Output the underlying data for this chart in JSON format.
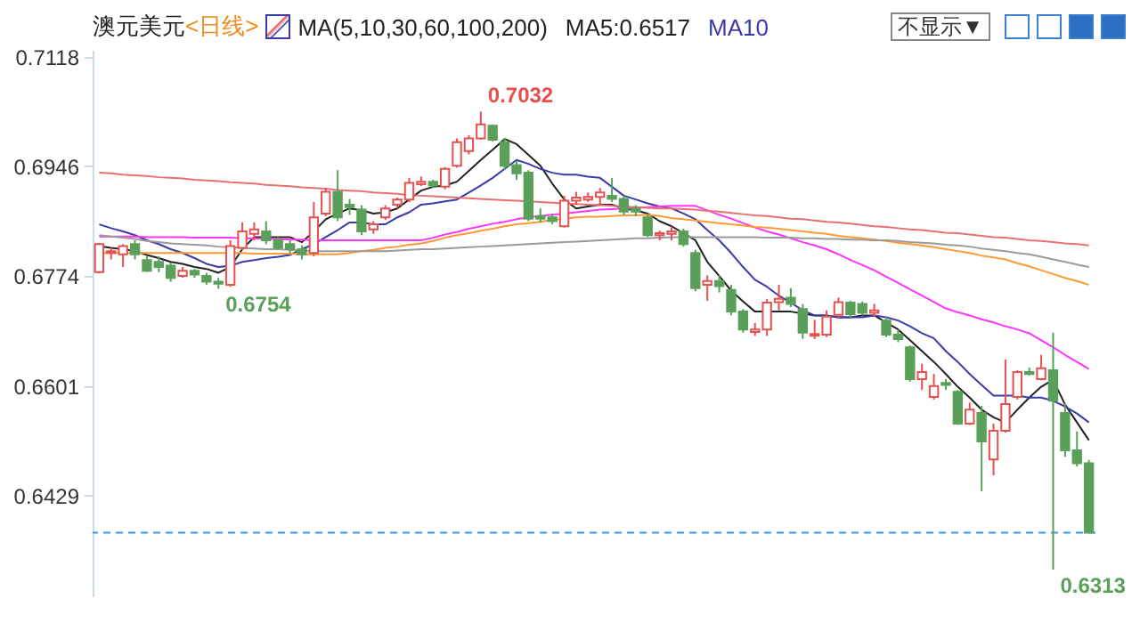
{
  "chart_data": {
    "type": "candlestick",
    "title": "澳元美元",
    "subtitle": "<日线>",
    "annotations": [
      "MA(5,10,30,60,100,200)",
      "MA5:0.6517",
      "MA10",
      "不显示▼",
      "0.7032",
      "0.6754",
      "0.6313"
    ],
    "categories": [
      null,
      null,
      null,
      null,
      null,
      null,
      null,
      null,
      null,
      null,
      null,
      null,
      null,
      null,
      null,
      null,
      null,
      null,
      null,
      null,
      null,
      null,
      null,
      null,
      null,
      null,
      null,
      null,
      null,
      null,
      null,
      null,
      null,
      null,
      null,
      null,
      null,
      null,
      null,
      null,
      null,
      null,
      null,
      null,
      null,
      null,
      null,
      null,
      null,
      null,
      null,
      null,
      null,
      null,
      null,
      null,
      null,
      null,
      null,
      null,
      null,
      null,
      null,
      null,
      null,
      null,
      null,
      null,
      null,
      null,
      null,
      null,
      null,
      null,
      null,
      null,
      null,
      null,
      null,
      null,
      null,
      null,
      null,
      null
    ],
    "ohlc": [
      [
        0.678,
        0.6826,
        0.6778,
        0.6824
      ],
      [
        0.681,
        0.6818,
        0.68,
        0.6813
      ],
      [
        0.6808,
        0.6824,
        0.6788,
        0.6821
      ],
      [
        0.6824,
        0.683,
        0.68,
        0.6808
      ],
      [
        0.6799,
        0.6805,
        0.678,
        0.6782
      ],
      [
        0.6796,
        0.6805,
        0.678,
        0.6788
      ],
      [
        0.679,
        0.6795,
        0.6765,
        0.6771
      ],
      [
        0.6774,
        0.6788,
        0.6771,
        0.6782
      ],
      [
        0.6782,
        0.6785,
        0.6771,
        0.6776
      ],
      [
        0.6774,
        0.6779,
        0.676,
        0.6765
      ],
      [
        0.6765,
        0.6771,
        0.6754,
        0.6762
      ],
      [
        0.676,
        0.683,
        0.6757,
        0.6821
      ],
      [
        0.6818,
        0.6858,
        0.6815,
        0.6844
      ],
      [
        0.684,
        0.6858,
        0.683,
        0.6847
      ],
      [
        0.6844,
        0.686,
        0.6824,
        0.683
      ],
      [
        0.683,
        0.6835,
        0.6815,
        0.6818
      ],
      [
        0.6824,
        0.683,
        0.681,
        0.6816
      ],
      [
        0.6816,
        0.6822,
        0.68,
        0.6808
      ],
      [
        0.681,
        0.689,
        0.6805,
        0.6866
      ],
      [
        0.6872,
        0.6912,
        0.6868,
        0.6906
      ],
      [
        0.6906,
        0.694,
        0.686,
        0.6866
      ],
      [
        0.6886,
        0.6895,
        0.687,
        0.6882
      ],
      [
        0.6878,
        0.6885,
        0.6838,
        0.6844
      ],
      [
        0.6847,
        0.686,
        0.684,
        0.6855
      ],
      [
        0.6866,
        0.6885,
        0.6862,
        0.688
      ],
      [
        0.6886,
        0.6897,
        0.688,
        0.6894
      ],
      [
        0.6894,
        0.6928,
        0.689,
        0.692
      ],
      [
        0.6918,
        0.693,
        0.6915,
        0.6922
      ],
      [
        0.6922,
        0.6925,
        0.6912,
        0.6916
      ],
      [
        0.6914,
        0.6945,
        0.691,
        0.6942
      ],
      [
        0.6947,
        0.699,
        0.6944,
        0.6984
      ],
      [
        0.697,
        0.6995,
        0.6965,
        0.699
      ],
      [
        0.699,
        0.7032,
        0.6988,
        0.7012
      ],
      [
        0.701,
        0.7012,
        0.6985,
        0.6988
      ],
      [
        0.6984,
        0.699,
        0.694,
        0.6947
      ],
      [
        0.6948,
        0.6955,
        0.6925,
        0.6935
      ],
      [
        0.6936,
        0.694,
        0.686,
        0.6864
      ],
      [
        0.6868,
        0.688,
        0.6858,
        0.6864
      ],
      [
        0.6866,
        0.6872,
        0.6855,
        0.686
      ],
      [
        0.6852,
        0.69,
        0.685,
        0.6892
      ],
      [
        0.6892,
        0.6906,
        0.6886,
        0.6897
      ],
      [
        0.6894,
        0.6905,
        0.689,
        0.6898
      ],
      [
        0.6898,
        0.6912,
        0.6885,
        0.6905
      ],
      [
        0.69,
        0.6928,
        0.689,
        0.6895
      ],
      [
        0.6895,
        0.69,
        0.687,
        0.6875
      ],
      [
        0.688,
        0.6885,
        0.6868,
        0.6875
      ],
      [
        0.6866,
        0.687,
        0.6835,
        0.6838
      ],
      [
        0.6838,
        0.6845,
        0.683,
        0.6841
      ],
      [
        0.684,
        0.6852,
        0.683,
        0.6844
      ],
      [
        0.6844,
        0.6848,
        0.682,
        0.6824
      ],
      [
        0.681,
        0.6815,
        0.675,
        0.6755
      ],
      [
        0.676,
        0.6775,
        0.6735,
        0.6766
      ],
      [
        0.6766,
        0.6775,
        0.6748,
        0.6758
      ],
      [
        0.6752,
        0.676,
        0.6712,
        0.6718
      ],
      [
        0.6718,
        0.6722,
        0.6685,
        0.669
      ],
      [
        0.6686,
        0.67,
        0.668,
        0.669
      ],
      [
        0.669,
        0.6738,
        0.668,
        0.6732
      ],
      [
        0.6733,
        0.676,
        0.672,
        0.6738
      ],
      [
        0.674,
        0.6755,
        0.6725,
        0.673
      ],
      [
        0.6722,
        0.673,
        0.6675,
        0.6685
      ],
      [
        0.668,
        0.6705,
        0.6675,
        0.6683
      ],
      [
        0.6682,
        0.672,
        0.6678,
        0.671
      ],
      [
        0.6713,
        0.674,
        0.6708,
        0.6733
      ],
      [
        0.6732,
        0.6735,
        0.6708,
        0.6714
      ],
      [
        0.673,
        0.6734,
        0.6712,
        0.6716
      ],
      [
        0.6716,
        0.673,
        0.671,
        0.672
      ],
      [
        0.6704,
        0.671,
        0.6678,
        0.6682
      ],
      [
        0.6682,
        0.669,
        0.667,
        0.6675
      ],
      [
        0.6662,
        0.6665,
        0.6608,
        0.6612
      ],
      [
        0.6612,
        0.6636,
        0.6595,
        0.6623
      ],
      [
        0.6584,
        0.662,
        0.658,
        0.6601
      ],
      [
        0.6606,
        0.6612,
        0.6595,
        0.6603
      ],
      [
        0.6592,
        0.6595,
        0.654,
        0.6542
      ],
      [
        0.6542,
        0.6575,
        0.654,
        0.6564
      ],
      [
        0.6559,
        0.657,
        0.6436,
        0.6514
      ],
      [
        0.6486,
        0.6542,
        0.6461,
        0.6531
      ],
      [
        0.6531,
        0.6643,
        0.6528,
        0.6573
      ],
      [
        0.6584,
        0.6626,
        0.658,
        0.6623
      ],
      [
        0.6623,
        0.663,
        0.6618,
        0.662
      ],
      [
        0.6612,
        0.665,
        0.661,
        0.6629
      ],
      [
        0.6626,
        0.6685,
        0.6313,
        0.6578
      ],
      [
        0.6559,
        0.6575,
        0.649,
        0.65
      ],
      [
        0.65,
        0.653,
        0.6475,
        0.648
      ],
      [
        0.648,
        0.6485,
        0.6371,
        0.6371
      ]
    ],
    "colors": [
      "#e84f4f",
      "#e84f4f",
      "#e84f4f",
      "#5aa05a",
      "#5aa05a",
      "#5aa05a",
      "#5aa05a",
      "#e84f4f",
      "#5aa05a",
      "#5aa05a",
      "#5aa05a",
      "#e84f4f",
      "#e84f4f",
      "#e84f4f",
      "#5aa05a",
      "#5aa05a",
      "#5aa05a",
      "#5aa05a",
      "#e84f4f",
      "#e84f4f",
      "#5aa05a",
      "#5aa05a",
      "#5aa05a",
      "#e84f4f",
      "#e84f4f",
      "#e84f4f",
      "#e84f4f",
      "#e84f4f",
      "#5aa05a",
      "#e84f4f",
      "#e84f4f",
      "#e84f4f",
      "#e84f4f",
      "#5aa05a",
      "#5aa05a",
      "#5aa05a",
      "#5aa05a",
      "#5aa05a",
      "#5aa05a",
      "#e84f4f",
      "#e84f4f",
      "#e84f4f",
      "#e84f4f",
      "#5aa05a",
      "#5aa05a",
      "#5aa05a",
      "#5aa05a",
      "#e84f4f",
      "#e84f4f",
      "#5aa05a",
      "#5aa05a",
      "#e84f4f",
      "#5aa05a",
      "#5aa05a",
      "#5aa05a",
      "#e84f4f",
      "#e84f4f",
      "#e84f4f",
      "#5aa05a",
      "#5aa05a",
      "#e84f4f",
      "#e84f4f",
      "#e84f4f",
      "#5aa05a",
      "#5aa05a",
      "#e84f4f",
      "#5aa05a",
      "#5aa05a",
      "#5aa05a",
      "#e84f4f",
      "#e84f4f",
      "#5aa05a",
      "#5aa05a",
      "#e84f4f",
      "#5aa05a",
      "#e84f4f",
      "#e84f4f",
      "#e84f4f",
      "#5aa05a",
      "#e84f4f",
      "#5aa05a",
      "#5aa05a",
      "#5aa05a",
      "#5aa05a"
    ],
    "series": [
      {
        "type": "line",
        "color": "#222222",
        "values": [
          0.6821,
          0.6818,
          0.6816,
          0.6813,
          0.6807,
          0.6802,
          0.6796,
          0.6793,
          0.6788,
          0.6785,
          0.6779,
          0.6788,
          0.6816,
          0.6835,
          0.6835,
          0.6835,
          0.6835,
          0.6827,
          0.6844,
          0.6863,
          0.6872,
          0.688,
          0.6877,
          0.6872,
          0.6874,
          0.688,
          0.6894,
          0.6908,
          0.6914,
          0.6916,
          0.6922,
          0.6939,
          0.6956,
          0.6972,
          0.6989,
          0.6981,
          0.6964,
          0.6947,
          0.6919,
          0.6894,
          0.688,
          0.6883,
          0.6886,
          0.6886,
          0.688,
          0.6877,
          0.6872,
          0.686,
          0.6852,
          0.6841,
          0.683,
          0.6796,
          0.6774,
          0.6751,
          0.6734,
          0.6718,
          0.6718,
          0.6718,
          0.6718,
          0.6715,
          0.6712,
          0.6712,
          0.6709,
          0.6709,
          0.6712,
          0.6712,
          0.6701,
          0.669,
          0.6673,
          0.6656,
          0.6639,
          0.662,
          0.66,
          0.6583,
          0.6564,
          0.6552,
          0.6544,
          0.6564,
          0.6583,
          0.66,
          0.6611,
          0.6572,
          0.6544,
          0.6516
        ]
      },
      {
        "type": "line",
        "color": "#3a3aa8",
        "values": [
          0.6855,
          0.6849,
          0.6844,
          0.6838,
          0.683,
          0.6824,
          0.6816,
          0.681,
          0.6802,
          0.6793,
          0.6788,
          0.679,
          0.6796,
          0.6799,
          0.6802,
          0.6804,
          0.6807,
          0.6816,
          0.6824,
          0.6835,
          0.6846,
          0.6858,
          0.6858,
          0.6855,
          0.6855,
          0.6866,
          0.6874,
          0.6886,
          0.6888,
          0.6891,
          0.6894,
          0.6905,
          0.6916,
          0.6928,
          0.6942,
          0.6956,
          0.695,
          0.6942,
          0.6936,
          0.6933,
          0.6933,
          0.693,
          0.6928,
          0.6914,
          0.69,
          0.6894,
          0.6888,
          0.6883,
          0.688,
          0.6872,
          0.6863,
          0.6846,
          0.683,
          0.681,
          0.6788,
          0.6768,
          0.6757,
          0.6743,
          0.6732,
          0.672,
          0.6712,
          0.6712,
          0.6709,
          0.6709,
          0.6709,
          0.6712,
          0.6709,
          0.6704,
          0.6695,
          0.6684,
          0.6676,
          0.6656,
          0.6639,
          0.662,
          0.6603,
          0.6586,
          0.6586,
          0.6586,
          0.6583,
          0.6583,
          0.6578,
          0.6569,
          0.6558,
          0.6544
        ]
      },
      {
        "type": "line",
        "color": "#ff33ff",
        "values": [
          0.6836,
          0.6836,
          0.6836,
          0.6836,
          0.6835,
          0.6835,
          0.6835,
          0.6835,
          0.6834,
          0.6834,
          0.6834,
          0.6834,
          0.6833,
          0.6833,
          0.6832,
          0.6832,
          0.6831,
          0.6831,
          0.683,
          0.683,
          0.683,
          0.683,
          0.683,
          0.683,
          0.683,
          0.683,
          0.683,
          0.683,
          0.6834,
          0.6839,
          0.6843,
          0.6848,
          0.6852,
          0.6856,
          0.6859,
          0.6863,
          0.6866,
          0.6868,
          0.687,
          0.6872,
          0.6874,
          0.6876,
          0.6878,
          0.6879,
          0.688,
          0.6881,
          0.6882,
          0.6883,
          0.6884,
          0.6884,
          0.6884,
          0.6877,
          0.687,
          0.6864,
          0.6857,
          0.685,
          0.6844,
          0.6839,
          0.6833,
          0.6827,
          0.6822,
          0.6816,
          0.6808,
          0.6799,
          0.6791,
          0.6783,
          0.6773,
          0.6763,
          0.6753,
          0.6743,
          0.6733,
          0.6723,
          0.6717,
          0.6712,
          0.6706,
          0.6701,
          0.6695,
          0.669,
          0.6684,
          0.6673,
          0.6662,
          0.665,
          0.6639,
          0.6628
        ]
      },
      {
        "type": "line",
        "color": "#ff9933",
        "values": [
          0.681,
          0.681,
          0.681,
          0.681,
          0.681,
          0.681,
          0.681,
          0.681,
          0.681,
          0.681,
          0.681,
          0.681,
          0.681,
          0.6809,
          0.6809,
          0.6809,
          0.6809,
          0.6808,
          0.6808,
          0.6808,
          0.6808,
          0.681,
          0.6813,
          0.6815,
          0.6818,
          0.682,
          0.6823,
          0.6825,
          0.6829,
          0.6834,
          0.6838,
          0.6841,
          0.6845,
          0.6848,
          0.6852,
          0.6855,
          0.6857,
          0.6859,
          0.6862,
          0.6864,
          0.6866,
          0.6867,
          0.6867,
          0.6868,
          0.6869,
          0.6869,
          0.687,
          0.6868,
          0.6865,
          0.6863,
          0.6861,
          0.6859,
          0.6857,
          0.6855,
          0.6853,
          0.6851,
          0.685,
          0.6848,
          0.6846,
          0.6844,
          0.6842,
          0.684,
          0.6837,
          0.6835,
          0.6833,
          0.6831,
          0.6829,
          0.6826,
          0.6824,
          0.6822,
          0.6819,
          0.6816,
          0.6813,
          0.681,
          0.6806,
          0.6803,
          0.68,
          0.6794,
          0.6789,
          0.6783,
          0.6777,
          0.6771,
          0.6766,
          0.676
        ]
      },
      {
        "type": "line",
        "color": "#9a9a9a",
        "values": [
          0.6838,
          0.6836,
          0.6834,
          0.6832,
          0.6829,
          0.6827,
          0.6825,
          0.6824,
          0.6823,
          0.6822,
          0.682,
          0.6819,
          0.6818,
          0.6817,
          0.6816,
          0.6816,
          0.6815,
          0.6814,
          0.6813,
          0.6813,
          0.6813,
          0.6813,
          0.6813,
          0.6813,
          0.6813,
          0.6814,
          0.6815,
          0.6816,
          0.6816,
          0.6817,
          0.6818,
          0.6819,
          0.682,
          0.6821,
          0.6822,
          0.6823,
          0.6824,
          0.6825,
          0.6826,
          0.6827,
          0.6828,
          0.6829,
          0.683,
          0.6831,
          0.6832,
          0.6833,
          0.6833,
          0.6834,
          0.6835,
          0.6835,
          0.6835,
          0.6835,
          0.6835,
          0.6835,
          0.6835,
          0.6835,
          0.6834,
          0.6834,
          0.6834,
          0.6833,
          0.6833,
          0.6832,
          0.6832,
          0.6831,
          0.6831,
          0.683,
          0.683,
          0.6829,
          0.6827,
          0.6826,
          0.6825,
          0.6823,
          0.6822,
          0.682,
          0.6817,
          0.6815,
          0.6813,
          0.681,
          0.6808,
          0.6804,
          0.68,
          0.6796,
          0.6792,
          0.6788
        ]
      },
      {
        "type": "line",
        "color": "#e87070",
        "values": [
          0.6936,
          0.6935,
          0.6933,
          0.6932,
          0.6931,
          0.6929,
          0.6928,
          0.6927,
          0.6925,
          0.6924,
          0.6923,
          0.6921,
          0.692,
          0.6919,
          0.6917,
          0.6916,
          0.6915,
          0.6913,
          0.6912,
          0.6911,
          0.6909,
          0.6908,
          0.6907,
          0.6905,
          0.6904,
          0.6903,
          0.6901,
          0.69,
          0.6899,
          0.6898,
          0.6897,
          0.6896,
          0.6895,
          0.6894,
          0.6893,
          0.6892,
          0.6891,
          0.689,
          0.6889,
          0.6888,
          0.6887,
          0.6886,
          0.6885,
          0.6884,
          0.6883,
          0.6882,
          0.6881,
          0.688,
          0.688,
          0.6879,
          0.6878,
          0.6876,
          0.6875,
          0.6873,
          0.6871,
          0.6869,
          0.6868,
          0.6866,
          0.6864,
          0.6863,
          0.6861,
          0.6859,
          0.6858,
          0.6856,
          0.6854,
          0.6852,
          0.6851,
          0.6849,
          0.6847,
          0.6846,
          0.6844,
          0.6842,
          0.6841,
          0.6839,
          0.6837,
          0.6835,
          0.6834,
          0.6832,
          0.683,
          0.6829,
          0.6827,
          0.6825,
          0.6824,
          0.6822
        ]
      }
    ],
    "ylim": [
      0.6271,
      0.7129
    ],
    "yticks": [
      0.6429,
      0.6601,
      0.6774,
      0.6946,
      0.7118
    ],
    "ref_lines": [
      {
        "axis": "y",
        "value": 0.6371,
        "color": "#3399ff",
        "line_style": "dashed"
      }
    ],
    "tick_labels": "y"
  }
}
